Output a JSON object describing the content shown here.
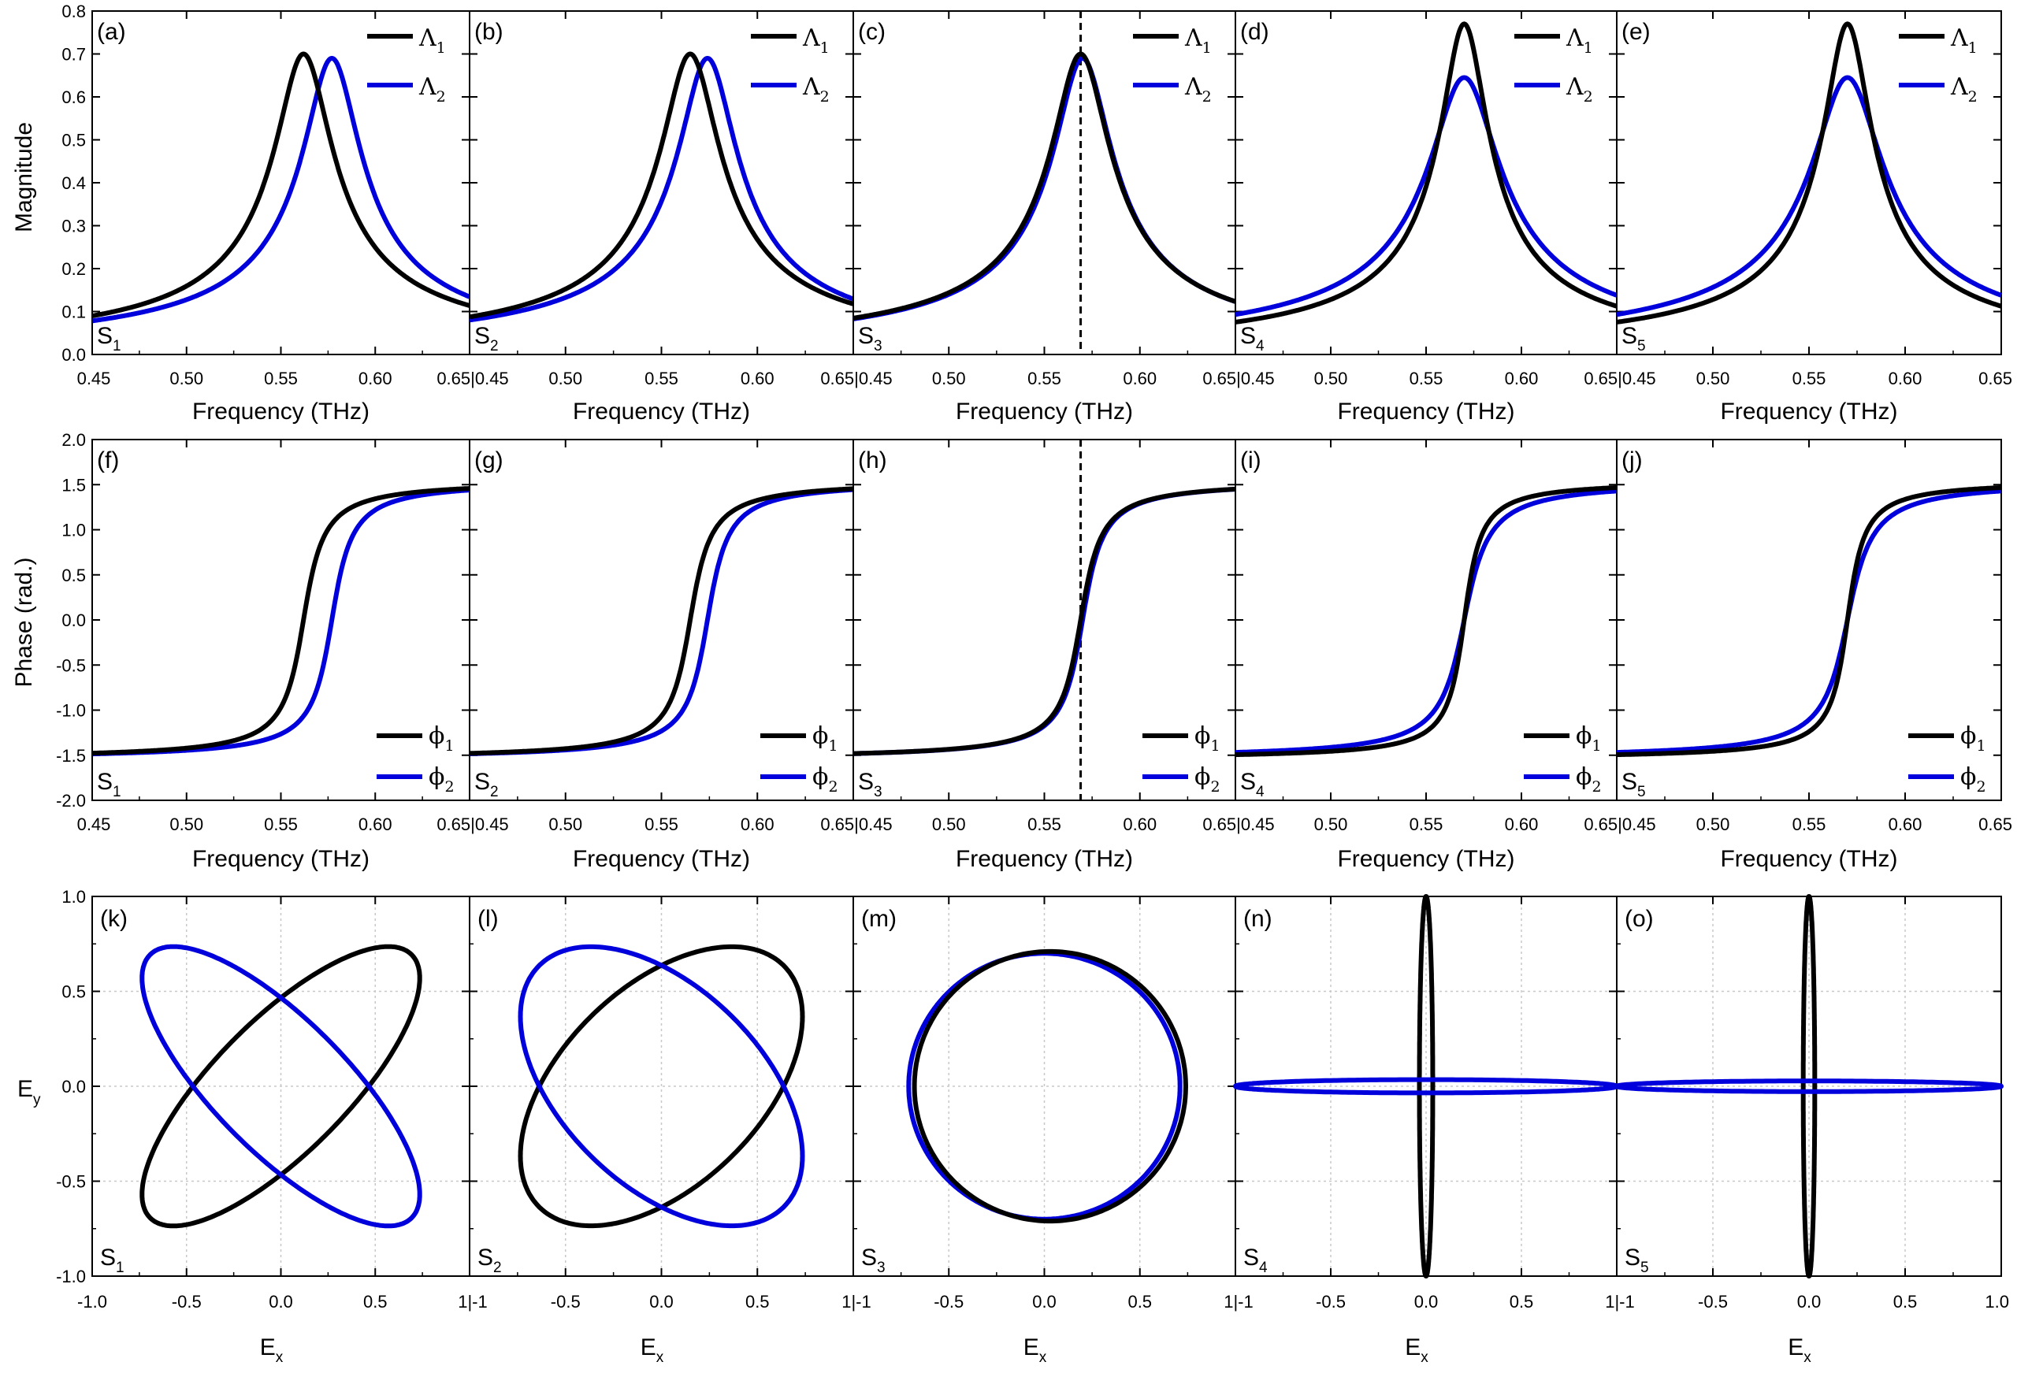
{
  "figure": {
    "row_titles": {
      "magnitude_ylabel": "Magnitude",
      "phase_ylabel": "Phase (rad.)",
      "polar_ylabel_main": "E",
      "polar_ylabel_sub": "y",
      "freq_xlabel": "Frequency (THz)",
      "polar_xlabel_main": "E",
      "polar_xlabel_sub": "x"
    },
    "colors": {
      "series1": "#000000",
      "series2": "#0000dd",
      "grid": "#c8c8c8"
    }
  },
  "chart_data": [
    {
      "type": "line",
      "row": "magnitude",
      "xlim": [
        0.45,
        0.65
      ],
      "ylim": [
        0.0,
        0.8
      ],
      "xticks": [
        "0.45",
        "0.50",
        "0.55",
        "0.60",
        "0.65"
      ],
      "yticks": [
        "0.0",
        "0.1",
        "0.2",
        "0.3",
        "0.4",
        "0.5",
        "0.6",
        "0.7",
        "0.8"
      ],
      "legend_position": "top-right",
      "panels": [
        {
          "letter": "(a)",
          "sample": "S",
          "sample_sub": "1",
          "series": [
            {
              "name": "Λ",
              "sub": "1",
              "peak_f": 0.562,
              "peak": 0.7,
              "hw": 0.0145
            },
            {
              "name": "Λ",
              "sub": "2",
              "peak_f": 0.577,
              "peak": 0.69,
              "hw": 0.0145
            }
          ],
          "vline": null,
          "xtick_labels": [
            "0.45",
            "0.50",
            "0.55",
            "0.60",
            "0.65|0.45"
          ]
        },
        {
          "letter": "(b)",
          "sample": "S",
          "sample_sub": "2",
          "series": [
            {
              "name": "Λ",
              "sub": "1",
              "peak_f": 0.565,
              "peak": 0.7,
              "hw": 0.0145
            },
            {
              "name": "Λ",
              "sub": "2",
              "peak_f": 0.574,
              "peak": 0.69,
              "hw": 0.0145
            }
          ],
          "vline": null,
          "xtick_labels": [
            "0.50",
            "0.55",
            "0.60",
            "0.65|0.45"
          ]
        },
        {
          "letter": "(c)",
          "sample": "S",
          "sample_sub": "3",
          "series": [
            {
              "name": "Λ",
              "sub": "1",
              "peak_f": 0.569,
              "peak": 0.7,
              "hw": 0.0145
            },
            {
              "name": "Λ",
              "sub": "2",
              "peak_f": 0.57,
              "peak": 0.69,
              "hw": 0.0145
            }
          ],
          "vline": 0.569,
          "xtick_labels": [
            "0.50",
            "0.55",
            "0.60",
            "0.65|0.45"
          ]
        },
        {
          "letter": "(d)",
          "sample": "S",
          "sample_sub": "4",
          "series": [
            {
              "name": "Λ",
              "sub": "1",
              "peak_f": 0.57,
              "peak": 0.77,
              "hw": 0.0118
            },
            {
              "name": "Λ",
              "sub": "2",
              "peak_f": 0.57,
              "peak": 0.645,
              "hw": 0.0175
            }
          ],
          "vline": null,
          "xtick_labels": [
            "0.50",
            "0.55",
            "0.60",
            "0.65|0.45"
          ]
        },
        {
          "letter": "(e)",
          "sample": "S",
          "sample_sub": "5",
          "series": [
            {
              "name": "Λ",
              "sub": "1",
              "peak_f": 0.57,
              "peak": 0.77,
              "hw": 0.0118
            },
            {
              "name": "Λ",
              "sub": "2",
              "peak_f": 0.57,
              "peak": 0.645,
              "hw": 0.0175
            }
          ],
          "vline": null,
          "xtick_labels": [
            "0.50",
            "0.55",
            "0.60",
            "0.65"
          ]
        }
      ]
    },
    {
      "type": "line",
      "row": "phase",
      "xlim": [
        0.45,
        0.65
      ],
      "ylim": [
        -2.0,
        2.0
      ],
      "yticks": [
        "-2.0",
        "-1.5",
        "-1.0",
        "-0.5",
        "0.0",
        "0.5",
        "1.0",
        "1.5",
        "2.0"
      ],
      "legend_position": "bottom-right",
      "panels": [
        {
          "letter": "(f)",
          "sample": "S",
          "sample_sub": "1",
          "series": [
            {
              "name": "ϕ",
              "sub": "1",
              "center_f": 0.562,
              "hw": 0.0145
            },
            {
              "name": "ϕ",
              "sub": "2",
              "center_f": 0.577,
              "hw": 0.0145
            }
          ],
          "vline": null,
          "xtick_labels": [
            "0.45",
            "0.50",
            "0.55",
            "0.60",
            "0.65|0.45"
          ]
        },
        {
          "letter": "(g)",
          "sample": "S",
          "sample_sub": "2",
          "series": [
            {
              "name": "ϕ",
              "sub": "1",
              "center_f": 0.565,
              "hw": 0.0145
            },
            {
              "name": "ϕ",
              "sub": "2",
              "center_f": 0.574,
              "hw": 0.0145
            }
          ],
          "vline": null,
          "xtick_labels": [
            "0.50",
            "0.55",
            "0.60",
            "0.65|0.45"
          ]
        },
        {
          "letter": "(h)",
          "sample": "S",
          "sample_sub": "3",
          "series": [
            {
              "name": "ϕ",
              "sub": "1",
              "center_f": 0.569,
              "hw": 0.0145
            },
            {
              "name": "ϕ",
              "sub": "2",
              "center_f": 0.57,
              "hw": 0.0145
            }
          ],
          "vline": 0.569,
          "xtick_labels": [
            "0.50",
            "0.55",
            "0.60",
            "0.65|0.45"
          ]
        },
        {
          "letter": "(i)",
          "sample": "S",
          "sample_sub": "4",
          "series": [
            {
              "name": "ϕ",
              "sub": "1",
              "center_f": 0.57,
              "hw": 0.0118
            },
            {
              "name": "ϕ",
              "sub": "2",
              "center_f": 0.57,
              "hw": 0.0175
            }
          ],
          "vline": null,
          "xtick_labels": [
            "0.50",
            "0.55",
            "0.60",
            "0.65|0.45"
          ]
        },
        {
          "letter": "(j)",
          "sample": "S",
          "sample_sub": "5",
          "series": [
            {
              "name": "ϕ",
              "sub": "1",
              "center_f": 0.57,
              "hw": 0.0118
            },
            {
              "name": "ϕ",
              "sub": "2",
              "center_f": 0.57,
              "hw": 0.0175
            }
          ],
          "vline": null,
          "xtick_labels": [
            "0.50",
            "0.55",
            "0.60",
            "0.65"
          ]
        }
      ]
    },
    {
      "type": "line",
      "row": "polarization",
      "xlim": [
        -1.0,
        1.0
      ],
      "ylim": [
        -1.0,
        1.0
      ],
      "yticks": [
        "-1.0",
        "-0.5",
        "0.0",
        "0.5",
        "1.0"
      ],
      "panels": [
        {
          "letter": "(k)",
          "sample": "S",
          "sample_sub": "1",
          "ellipses": [
            {
              "series": "1",
              "a": 0.98,
              "b": 0.35,
              "angle_deg": 45,
              "cx": 0.0,
              "cy": 0.0
            },
            {
              "series": "2",
              "a": 0.98,
              "b": 0.35,
              "angle_deg": -45,
              "cx": 0.0,
              "cy": 0.0
            }
          ],
          "xtick_labels": [
            "-1.0",
            "-0.5",
            "0.0",
            "0.5",
            "1|-1"
          ]
        },
        {
          "letter": "(l)",
          "sample": "S",
          "sample_sub": "2",
          "ellipses": [
            {
              "series": "1",
              "a": 0.9,
              "b": 0.52,
              "angle_deg": 45,
              "cx": 0.0,
              "cy": 0.0
            },
            {
              "series": "2",
              "a": 0.9,
              "b": 0.52,
              "angle_deg": -45,
              "cx": 0.0,
              "cy": 0.0
            }
          ],
          "xtick_labels": [
            "-0.5",
            "0.0",
            "0.5",
            "1|-1"
          ]
        },
        {
          "letter": "(m)",
          "sample": "S",
          "sample_sub": "3",
          "ellipses": [
            {
              "series": "2",
              "a": 0.71,
              "b": 0.7,
              "angle_deg": 0,
              "cx": 0.0,
              "cy": 0.0
            },
            {
              "series": "1",
              "a": 0.71,
              "b": 0.71,
              "angle_deg": 0,
              "cx": 0.03,
              "cy": 0.0
            }
          ],
          "xtick_labels": [
            "-0.5",
            "0.0",
            "0.5",
            "1|-1"
          ]
        },
        {
          "letter": "(n)",
          "sample": "S",
          "sample_sub": "4",
          "ellipses": [
            {
              "series": "1",
              "a": 0.035,
              "b": 1.0,
              "angle_deg": 0,
              "cx": 0.0,
              "cy": 0.0
            },
            {
              "series": "2",
              "a": 1.0,
              "b": 0.035,
              "angle_deg": 0,
              "cx": 0.0,
              "cy": 0.0
            }
          ],
          "xtick_labels": [
            "-0.5",
            "0.0",
            "0.5",
            "1|-1"
          ]
        },
        {
          "letter": "(o)",
          "sample": "S",
          "sample_sub": "5",
          "ellipses": [
            {
              "series": "1",
              "a": 0.03,
              "b": 1.0,
              "angle_deg": 0,
              "cx": 0.0,
              "cy": 0.0
            },
            {
              "series": "2",
              "a": 1.0,
              "b": 0.028,
              "angle_deg": 0,
              "cx": 0.0,
              "cy": 0.0
            }
          ],
          "xtick_labels": [
            "-0.5",
            "0.0",
            "0.5",
            "1.0"
          ]
        }
      ]
    }
  ]
}
